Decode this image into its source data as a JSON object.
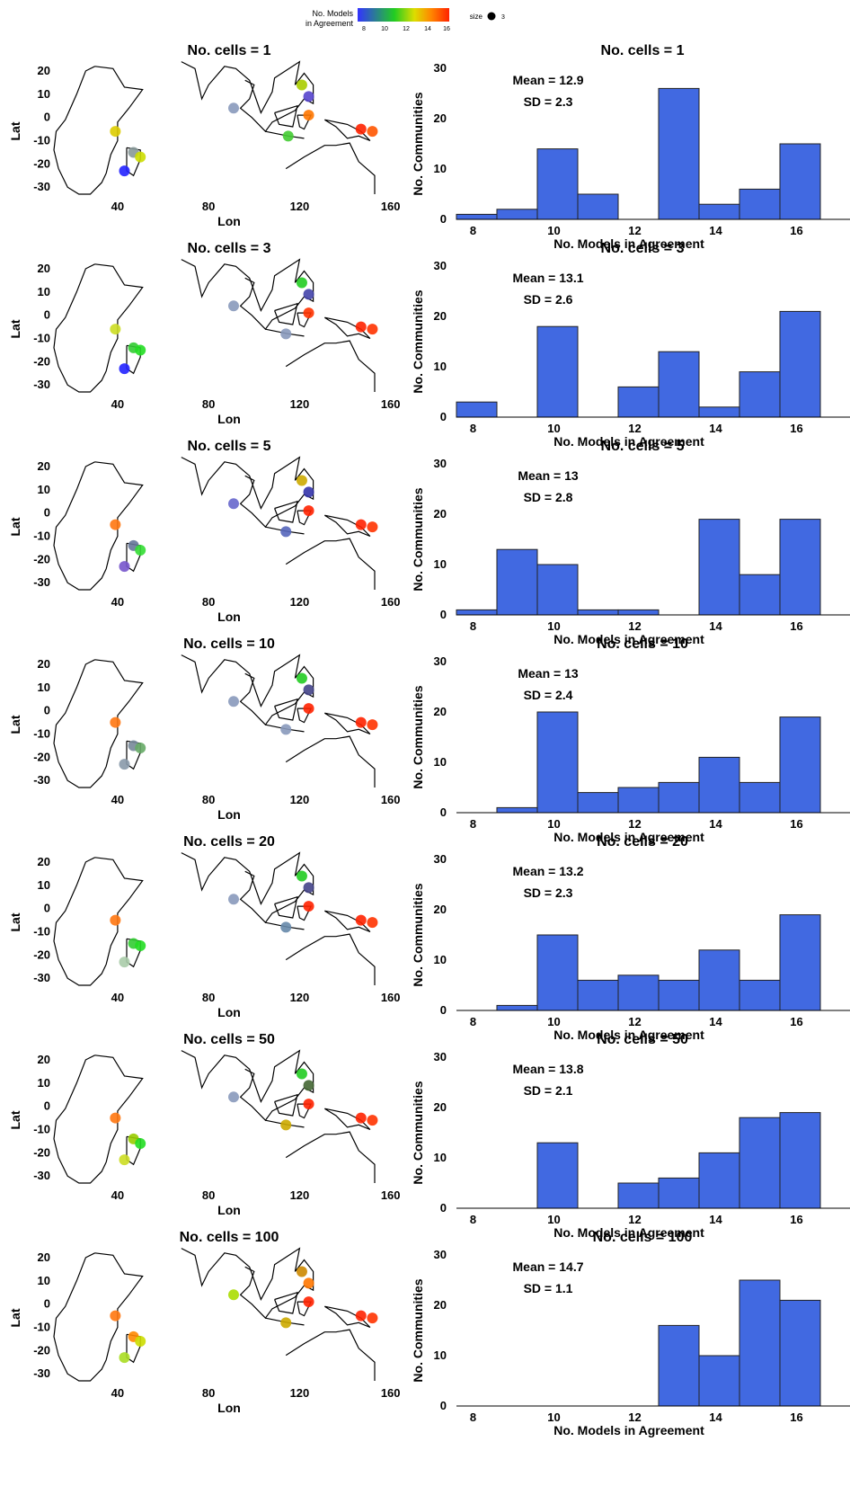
{
  "legend": {
    "colorbar_label_line1": "No. Models",
    "colorbar_label_line2": "in Agreement",
    "colorbar_ticks": [
      "8",
      "10",
      "12",
      "14",
      "16"
    ],
    "colorbar_colors": [
      "#3333ff",
      "#22cc22",
      "#dddd00",
      "#ff8800",
      "#ff2200"
    ],
    "size_label": "size",
    "size_value": "3"
  },
  "map_axes": {
    "ylabel": "Lat",
    "xlabel": "Lon",
    "lat_ticks": [
      "20",
      "10",
      "0",
      "-10",
      "-20",
      "-30"
    ],
    "lon_ticks": [
      "40",
      "80",
      "120",
      "160"
    ]
  },
  "hist_axes": {
    "xlabel": "No. Models in Agreement",
    "ylabel": "No. Communities",
    "y_ticks": [
      "0",
      "10",
      "20",
      "30"
    ],
    "x_ticks": [
      "8",
      "10",
      "12",
      "14",
      "16"
    ],
    "ylim": [
      0,
      30
    ],
    "bar_color": "#4169e1"
  },
  "chart_data": [
    {
      "type": "bar",
      "title": "No. cells = 1",
      "mean_label": "Mean =  12.9",
      "sd_label": "SD =  2.3",
      "x": [
        8,
        9,
        10,
        11,
        12,
        13,
        14,
        15,
        16
      ],
      "values": [
        1,
        2,
        14,
        5,
        0,
        26,
        3,
        6,
        15
      ],
      "xlabel": "No. Models in Agreement",
      "ylabel": "No. Communities",
      "ylim": [
        0,
        30
      ]
    },
    {
      "type": "bar",
      "title": "No. cells = 3",
      "mean_label": "Mean =  13.1",
      "sd_label": "SD =  2.6",
      "x": [
        8,
        9,
        10,
        11,
        12,
        13,
        14,
        15,
        16
      ],
      "values": [
        3,
        0,
        18,
        0,
        6,
        13,
        2,
        9,
        21
      ],
      "xlabel": "No. Models in Agreement",
      "ylabel": "No. Communities",
      "ylim": [
        0,
        30
      ]
    },
    {
      "type": "bar",
      "title": "No. cells = 5",
      "mean_label": "Mean =  13",
      "sd_label": "SD =  2.8",
      "x": [
        8,
        9,
        10,
        11,
        12,
        13,
        14,
        15,
        16
      ],
      "values": [
        1,
        13,
        10,
        1,
        1,
        0,
        19,
        8,
        19
      ],
      "xlabel": "No. Models in Agreement",
      "ylabel": "No. Communities",
      "ylim": [
        0,
        30
      ]
    },
    {
      "type": "bar",
      "title": "No. cells = 10",
      "mean_label": "Mean =  13",
      "sd_label": "SD =  2.4",
      "x": [
        8,
        9,
        10,
        11,
        12,
        13,
        14,
        15,
        16
      ],
      "values": [
        0,
        1,
        20,
        4,
        5,
        6,
        11,
        6,
        19
      ],
      "xlabel": "No. Models in Agreement",
      "ylabel": "No. Communities",
      "ylim": [
        0,
        30
      ]
    },
    {
      "type": "bar",
      "title": "No. cells = 20",
      "mean_label": "Mean =  13.2",
      "sd_label": "SD =  2.3",
      "x": [
        8,
        9,
        10,
        11,
        12,
        13,
        14,
        15,
        16
      ],
      "values": [
        0,
        1,
        15,
        6,
        7,
        6,
        12,
        6,
        19
      ],
      "xlabel": "No. Models in Agreement",
      "ylabel": "No. Communities",
      "ylim": [
        0,
        30
      ]
    },
    {
      "type": "bar",
      "title": "No. cells = 50",
      "mean_label": "Mean =  13.8",
      "sd_label": "SD =  2.1",
      "x": [
        8,
        9,
        10,
        11,
        12,
        13,
        14,
        15,
        16
      ],
      "values": [
        0,
        0,
        13,
        0,
        5,
        6,
        11,
        18,
        19
      ],
      "xlabel": "No. Models in Agreement",
      "ylabel": "No. Communities",
      "ylim": [
        0,
        30
      ]
    },
    {
      "type": "bar",
      "title": "No. cells = 100",
      "mean_label": "Mean =  14.7",
      "sd_label": "SD =  1.1",
      "x": [
        8,
        9,
        10,
        11,
        12,
        13,
        14,
        15,
        16
      ],
      "values": [
        0,
        0,
        0,
        0,
        0,
        16,
        10,
        25,
        21
      ],
      "xlabel": "No. Models in Agreement",
      "ylabel": "No. Communities",
      "ylim": [
        0,
        30
      ]
    }
  ],
  "maps": [
    {
      "title": "No. cells = 1",
      "points": [
        {
          "lon": 39,
          "lat": -6,
          "color": "#ddcc00"
        },
        {
          "lon": 47,
          "lat": -15,
          "color": "#889999"
        },
        {
          "lon": 50,
          "lat": -17,
          "color": "#ccdd00"
        },
        {
          "lon": 43,
          "lat": -23,
          "color": "#2222ff"
        },
        {
          "lon": 91,
          "lat": 4,
          "color": "#8899bb"
        },
        {
          "lon": 115,
          "lat": -8,
          "color": "#44cc33"
        },
        {
          "lon": 121,
          "lat": 14,
          "color": "#aacc00"
        },
        {
          "lon": 124,
          "lat": 9,
          "color": "#5544cc"
        },
        {
          "lon": 124,
          "lat": 1,
          "color": "#ff7700"
        },
        {
          "lon": 147,
          "lat": -5,
          "color": "#ff2200"
        },
        {
          "lon": 152,
          "lat": -6,
          "color": "#ff5500"
        }
      ]
    },
    {
      "title": "No. cells = 3",
      "points": [
        {
          "lon": 39,
          "lat": -6,
          "color": "#ccdd22"
        },
        {
          "lon": 47,
          "lat": -14,
          "color": "#33cc33"
        },
        {
          "lon": 50,
          "lat": -15,
          "color": "#22dd22"
        },
        {
          "lon": 43,
          "lat": -23,
          "color": "#2222ff"
        },
        {
          "lon": 91,
          "lat": 4,
          "color": "#8899bb"
        },
        {
          "lon": 114,
          "lat": -8,
          "color": "#8899bb"
        },
        {
          "lon": 121,
          "lat": 14,
          "color": "#22cc22"
        },
        {
          "lon": 124,
          "lat": 9,
          "color": "#4444aa"
        },
        {
          "lon": 124,
          "lat": 1,
          "color": "#ff3300"
        },
        {
          "lon": 147,
          "lat": -5,
          "color": "#ff2200"
        },
        {
          "lon": 152,
          "lat": -6,
          "color": "#ff3300"
        }
      ]
    },
    {
      "title": "No. cells = 5",
      "points": [
        {
          "lon": 39,
          "lat": -5,
          "color": "#ff7711"
        },
        {
          "lon": 47,
          "lat": -14,
          "color": "#667799"
        },
        {
          "lon": 50,
          "lat": -16,
          "color": "#33dd33"
        },
        {
          "lon": 43,
          "lat": -23,
          "color": "#7755cc"
        },
        {
          "lon": 91,
          "lat": 4,
          "color": "#6666cc"
        },
        {
          "lon": 114,
          "lat": -8,
          "color": "#5566bb"
        },
        {
          "lon": 121,
          "lat": 14,
          "color": "#ccaa00"
        },
        {
          "lon": 124,
          "lat": 9,
          "color": "#3333aa"
        },
        {
          "lon": 124,
          "lat": 1,
          "color": "#ff2200"
        },
        {
          "lon": 147,
          "lat": -5,
          "color": "#ff2200"
        },
        {
          "lon": 152,
          "lat": -6,
          "color": "#ff3300"
        }
      ]
    },
    {
      "title": "No. cells = 10",
      "points": [
        {
          "lon": 39,
          "lat": -5,
          "color": "#ff7711"
        },
        {
          "lon": 47,
          "lat": -15,
          "color": "#778899"
        },
        {
          "lon": 50,
          "lat": -16,
          "color": "#66aa66"
        },
        {
          "lon": 43,
          "lat": -23,
          "color": "#8899aa"
        },
        {
          "lon": 91,
          "lat": 4,
          "color": "#8899bb"
        },
        {
          "lon": 114,
          "lat": -8,
          "color": "#8899bb"
        },
        {
          "lon": 121,
          "lat": 14,
          "color": "#22cc22"
        },
        {
          "lon": 124,
          "lat": 9,
          "color": "#444488"
        },
        {
          "lon": 124,
          "lat": 1,
          "color": "#ff2200"
        },
        {
          "lon": 147,
          "lat": -5,
          "color": "#ff2200"
        },
        {
          "lon": 152,
          "lat": -6,
          "color": "#ff3300"
        }
      ]
    },
    {
      "title": "No. cells = 20",
      "points": [
        {
          "lon": 39,
          "lat": -5,
          "color": "#ff7711"
        },
        {
          "lon": 47,
          "lat": -15,
          "color": "#33cc33"
        },
        {
          "lon": 50,
          "lat": -16,
          "color": "#22dd22"
        },
        {
          "lon": 43,
          "lat": -23,
          "color": "#aaccaa"
        },
        {
          "lon": 91,
          "lat": 4,
          "color": "#8899bb"
        },
        {
          "lon": 114,
          "lat": -8,
          "color": "#6688aa"
        },
        {
          "lon": 121,
          "lat": 14,
          "color": "#22cc22"
        },
        {
          "lon": 124,
          "lat": 9,
          "color": "#444488"
        },
        {
          "lon": 124,
          "lat": 1,
          "color": "#ff2200"
        },
        {
          "lon": 147,
          "lat": -5,
          "color": "#ff2200"
        },
        {
          "lon": 152,
          "lat": -6,
          "color": "#ff3300"
        }
      ]
    },
    {
      "title": "No. cells = 50",
      "points": [
        {
          "lon": 39,
          "lat": -5,
          "color": "#ff7711"
        },
        {
          "lon": 47,
          "lat": -14,
          "color": "#99cc00"
        },
        {
          "lon": 50,
          "lat": -16,
          "color": "#22dd22"
        },
        {
          "lon": 43,
          "lat": -23,
          "color": "#ccdd22"
        },
        {
          "lon": 91,
          "lat": 4,
          "color": "#8899bb"
        },
        {
          "lon": 114,
          "lat": -8,
          "color": "#ccaa00"
        },
        {
          "lon": 121,
          "lat": 14,
          "color": "#22cc22"
        },
        {
          "lon": 124,
          "lat": 9,
          "color": "#446633"
        },
        {
          "lon": 124,
          "lat": 1,
          "color": "#ff2200"
        },
        {
          "lon": 147,
          "lat": -5,
          "color": "#ff2200"
        },
        {
          "lon": 152,
          "lat": -6,
          "color": "#ff3300"
        }
      ]
    },
    {
      "title": "No. cells = 100",
      "points": [
        {
          "lon": 39,
          "lat": -5,
          "color": "#ff7711"
        },
        {
          "lon": 47,
          "lat": -14,
          "color": "#ff8800"
        },
        {
          "lon": 50,
          "lat": -16,
          "color": "#ccdd00"
        },
        {
          "lon": 43,
          "lat": -23,
          "color": "#aadd22"
        },
        {
          "lon": 91,
          "lat": 4,
          "color": "#aadd00"
        },
        {
          "lon": 114,
          "lat": -8,
          "color": "#ccaa00"
        },
        {
          "lon": 121,
          "lat": 14,
          "color": "#cc8800"
        },
        {
          "lon": 124,
          "lat": 9,
          "color": "#ff7700"
        },
        {
          "lon": 124,
          "lat": 1,
          "color": "#ff2200"
        },
        {
          "lon": 147,
          "lat": -5,
          "color": "#ff2200"
        },
        {
          "lon": 152,
          "lat": -6,
          "color": "#ff3300"
        }
      ]
    }
  ]
}
